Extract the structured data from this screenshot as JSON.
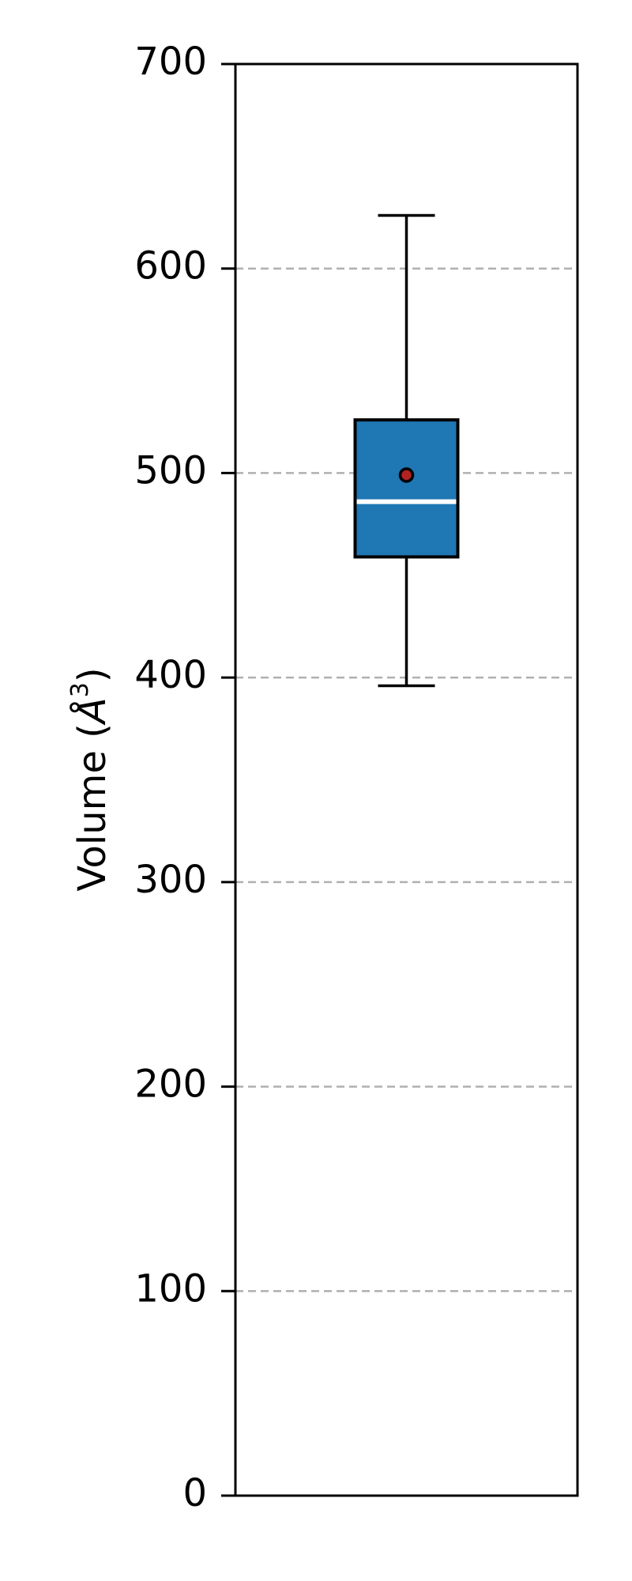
{
  "chart_data": {
    "type": "box",
    "ylabel": "Volume (Å³)",
    "ylabel_base": "Volume (",
    "ylabel_unit": "Å",
    "ylabel_exp": "3",
    "ylabel_close": ")",
    "ylim": [
      0,
      700
    ],
    "yticks": [
      0,
      100,
      200,
      300,
      400,
      500,
      600,
      700
    ],
    "grid": "horizontal dashed",
    "box": {
      "whisker_low": 396,
      "q1": 459,
      "median": 486,
      "q3": 526,
      "whisker_high": 626,
      "mean": 499
    },
    "colors": {
      "box_fill": "#1f77b4",
      "median_line": "#ffffff",
      "mean_marker": "#b22222",
      "grid": "#b0b0b0",
      "axes": "#000000"
    }
  }
}
